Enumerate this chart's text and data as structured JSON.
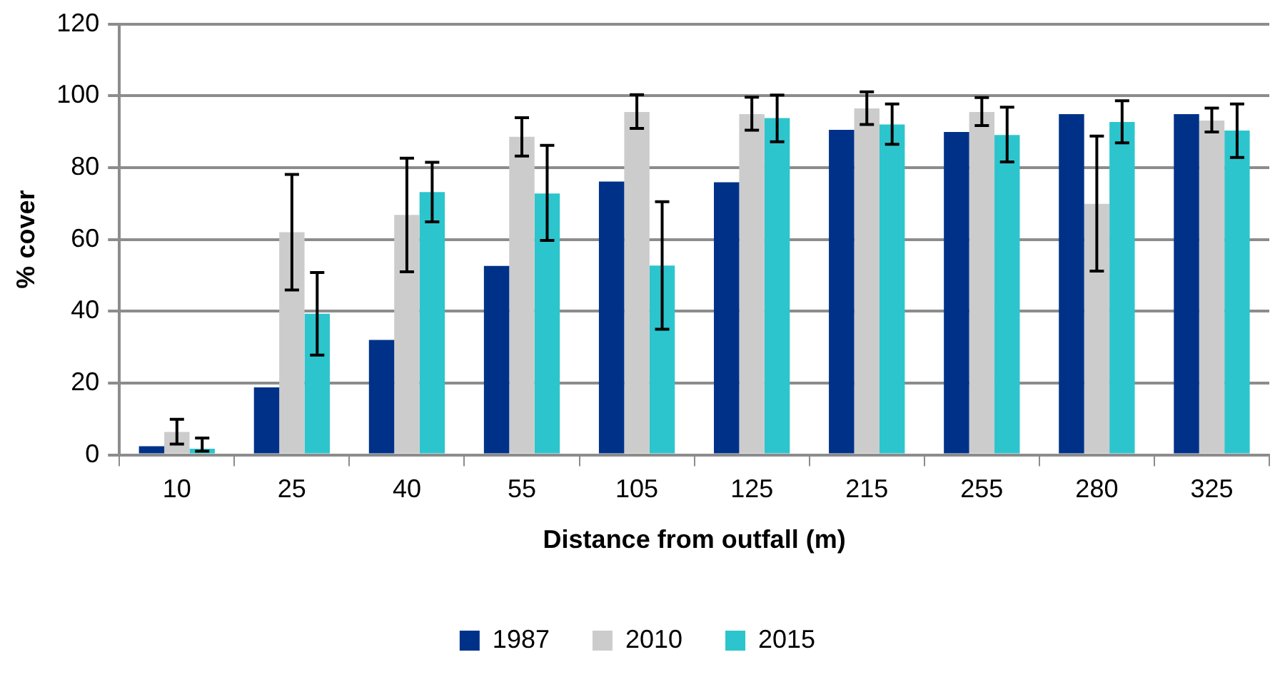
{
  "chart_data": {
    "type": "bar",
    "xlabel": "Distance from outfall (m)",
    "ylabel": "% cover",
    "categories": [
      "10",
      "25",
      "40",
      "55",
      "105",
      "125",
      "215",
      "255",
      "280",
      "325"
    ],
    "series": [
      {
        "name": "1987",
        "color": "#003189",
        "values": [
          2.4,
          18.8,
          32.0,
          52.6,
          76.1,
          75.9,
          90.5,
          89.9,
          94.9,
          94.9
        ]
      },
      {
        "name": "2010",
        "color": "#cccccc",
        "values": [
          6.4,
          62.0,
          66.8,
          88.6,
          95.5,
          94.9,
          96.5,
          95.5,
          69.9,
          93.1
        ],
        "errors": [
          [
            3.0,
            9.9
          ],
          [
            45.9,
            78.1
          ],
          [
            51.0,
            82.6
          ],
          [
            83.2,
            93.9
          ],
          [
            90.9,
            100.3
          ],
          [
            90.4,
            99.6
          ],
          [
            92.0,
            101.1
          ],
          [
            91.7,
            99.5
          ],
          [
            51.2,
            88.8
          ],
          [
            89.9,
            96.6
          ]
        ]
      },
      {
        "name": "2015",
        "color": "#2cc5cd",
        "values": [
          1.7,
          39.3,
          73.2,
          72.8,
          52.7,
          93.8,
          92.0,
          89.1,
          92.7,
          90.3
        ],
        "errors": [
          [
            1.0,
            4.7
          ],
          [
            27.8,
            50.8
          ],
          [
            64.9,
            81.5
          ],
          [
            59.7,
            86.2
          ],
          [
            35.0,
            70.5
          ],
          [
            87.2,
            100.2
          ],
          [
            86.5,
            97.7
          ],
          [
            81.6,
            96.8
          ],
          [
            86.9,
            98.6
          ],
          [
            82.8,
            97.7
          ]
        ]
      }
    ],
    "ylim": [
      0,
      120
    ],
    "yticks": [
      0,
      20,
      40,
      60,
      80,
      100,
      120
    ],
    "grid": "y",
    "legend": "bottom"
  }
}
